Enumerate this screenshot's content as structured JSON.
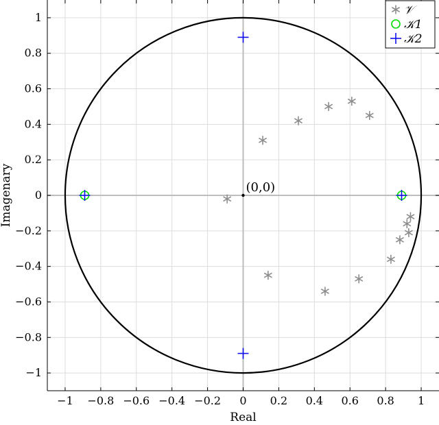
{
  "chart_data": {
    "type": "scatter",
    "xlabel": "Real",
    "ylabel": "Imagenary",
    "xlim": [
      -1.1,
      1.1
    ],
    "ylim": [
      -1.1,
      1.1
    ],
    "grid": true,
    "xticks": [
      -1,
      -0.8,
      -0.6,
      -0.4,
      -0.2,
      0,
      0.2,
      0.4,
      0.6,
      0.8,
      1
    ],
    "xtick_labels": [
      "−1",
      "−0.8",
      "−0.6",
      "−0.4",
      "−0.2",
      "0",
      "0.2",
      "0.4",
      "0.6",
      "0.8",
      "1"
    ],
    "yticks": [
      -1,
      -0.8,
      -0.6,
      -0.4,
      -0.2,
      0,
      0.2,
      0.4,
      0.6,
      0.8,
      1
    ],
    "ytick_labels": [
      "−1",
      "−0.8",
      "−0.6",
      "−0.4",
      "−0.2",
      "0",
      "0.2",
      "0.4",
      "0.6",
      "0.8",
      "1"
    ],
    "unit_circle": true,
    "legend_position": "top-right",
    "annotation": {
      "text": "(0,0)",
      "x": 0,
      "y": 0
    },
    "series": [
      {
        "name": "𝒱",
        "marker": "asterisk",
        "color": "#8c8c8c",
        "points": [
          [
            -0.09,
            -0.02
          ],
          [
            0.11,
            0.31
          ],
          [
            0.31,
            0.42
          ],
          [
            0.48,
            0.5
          ],
          [
            0.61,
            0.53
          ],
          [
            0.71,
            0.45
          ],
          [
            0.14,
            -0.45
          ],
          [
            0.46,
            -0.54
          ],
          [
            0.65,
            -0.47
          ],
          [
            0.83,
            -0.36
          ],
          [
            0.88,
            -0.25
          ],
          [
            0.92,
            -0.16
          ],
          [
            0.94,
            -0.12
          ],
          [
            0.93,
            -0.21
          ]
        ]
      },
      {
        "name": "𝒦1",
        "marker": "circle",
        "color": "#00dd00",
        "points": [
          [
            -0.89,
            0
          ],
          [
            0.89,
            0
          ]
        ]
      },
      {
        "name": "𝒦2",
        "marker": "plus",
        "color": "#1010ee",
        "points": [
          [
            -0.89,
            0
          ],
          [
            0.89,
            0
          ],
          [
            0,
            0.89
          ],
          [
            0,
            -0.89
          ]
        ]
      }
    ]
  }
}
